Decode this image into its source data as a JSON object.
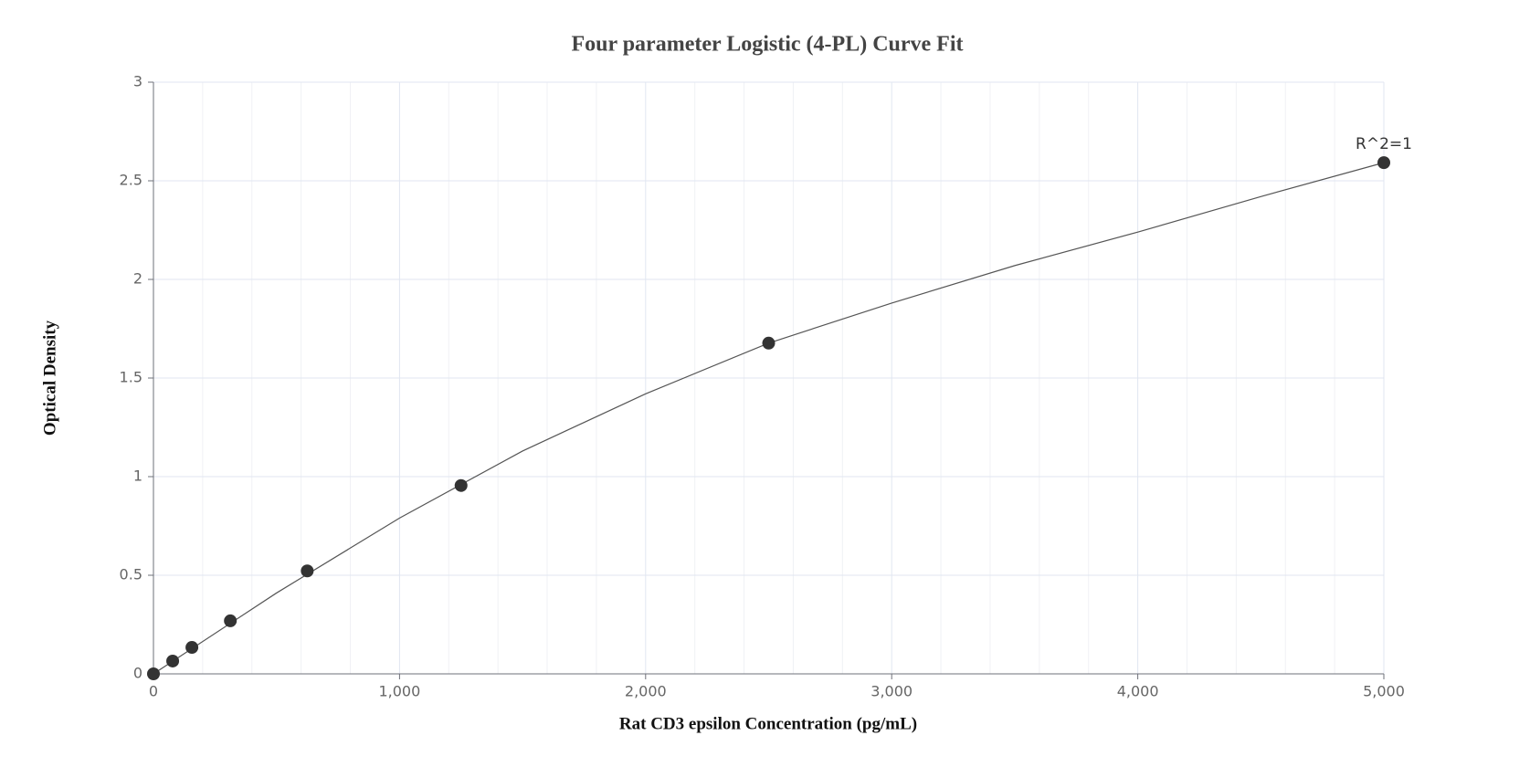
{
  "chart_data": {
    "type": "scatter",
    "title": "Four parameter Logistic (4-PL) Curve Fit",
    "x_label": "Rat CD3 epsilon Concentration (pg/mL)",
    "y_label": "Optical Density",
    "annotation": "R^2=1",
    "x": [
      0,
      78.125,
      156.25,
      312.5,
      625,
      1250,
      2500,
      5000
    ],
    "series": [
      {
        "color": "#333333",
        "values": [
          0,
          0.065,
          0.134,
          0.269,
          0.522,
          0.955,
          1.677,
          2.592
        ]
      }
    ],
    "fit": {
      "color": "#555555",
      "x": [
        0,
        500,
        1000,
        1500,
        2000,
        2500,
        3000,
        3500,
        4000,
        4500,
        5000
      ],
      "values": [
        0,
        0.41,
        0.79,
        1.13,
        1.42,
        1.677,
        1.88,
        2.07,
        2.24,
        2.42,
        2.592
      ]
    },
    "xlim": [
      0,
      5000
    ],
    "ylim": [
      0,
      3
    ],
    "xticks": [
      0,
      {
        "value": 1000,
        "label": "1,000"
      },
      {
        "value": 2000,
        "label": "2,000"
      },
      {
        "value": 3000,
        "label": "3,000"
      },
      {
        "value": 4000,
        "label": "4,000"
      },
      {
        "value": 5000,
        "label": "5,000"
      }
    ],
    "xminorticks": [
      200,
      400,
      600,
      800,
      1200,
      1400,
      1600,
      1800,
      2200,
      2400,
      2600,
      2800,
      3200,
      3400,
      3600,
      3800,
      4200,
      4400,
      4600,
      4800
    ],
    "yticks": [
      0,
      0.5,
      1,
      1.5,
      2,
      2.5,
      3
    ],
    "grid": true
  }
}
